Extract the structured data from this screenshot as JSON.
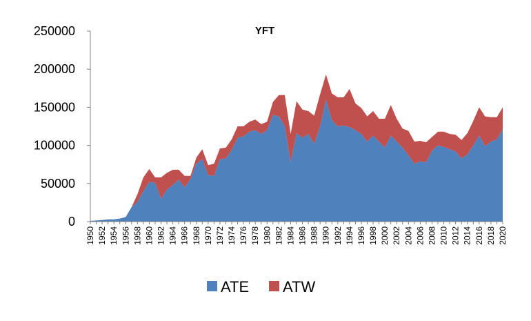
{
  "chart_data": {
    "type": "area",
    "stacked": true,
    "title": "YFT",
    "xlabel": "",
    "ylabel": "",
    "ylim": [
      0,
      250000
    ],
    "yticks": [
      "0",
      "50000",
      "100000",
      "150000",
      "200000",
      "250000"
    ],
    "x": [
      1950,
      1951,
      1952,
      1953,
      1954,
      1955,
      1956,
      1957,
      1958,
      1959,
      1960,
      1961,
      1962,
      1963,
      1964,
      1965,
      1966,
      1967,
      1968,
      1969,
      1970,
      1971,
      1972,
      1973,
      1974,
      1975,
      1976,
      1977,
      1978,
      1979,
      1980,
      1981,
      1982,
      1983,
      1984,
      1985,
      1986,
      1987,
      1988,
      1989,
      1990,
      1991,
      1992,
      1993,
      1994,
      1995,
      1996,
      1997,
      1998,
      1999,
      2000,
      2001,
      2002,
      2003,
      2004,
      2005,
      2006,
      2007,
      2008,
      2009,
      2010,
      2011,
      2012,
      2013,
      2014,
      2015,
      2016,
      2017,
      2018,
      2019,
      2020
    ],
    "xtick_labels": [
      "1950",
      "1952",
      "1954",
      "1956",
      "1958",
      "1960",
      "1962",
      "1964",
      "1966",
      "1968",
      "1970",
      "1972",
      "1974",
      "1976",
      "1978",
      "1980",
      "1982",
      "1984",
      "1986",
      "1988",
      "1990",
      "1992",
      "1994",
      "1996",
      "1998",
      "2000",
      "2002",
      "2004",
      "2006",
      "2008",
      "2010",
      "2012",
      "2014",
      "2016",
      "2018",
      "2020"
    ],
    "series": [
      {
        "name": "ATE",
        "color": "#4f81bd",
        "values": [
          1000,
          1500,
          2000,
          3000,
          3000,
          4000,
          6000,
          19000,
          26000,
          40000,
          52000,
          51000,
          30000,
          42000,
          48000,
          55000,
          45000,
          56000,
          76000,
          82000,
          61000,
          60000,
          82000,
          83000,
          94000,
          110000,
          112000,
          118000,
          120000,
          115000,
          120000,
          140000,
          138000,
          125000,
          78000,
          116000,
          110000,
          115000,
          102000,
          125000,
          160000,
          133000,
          125000,
          126000,
          124000,
          120000,
          115000,
          105000,
          113000,
          105000,
          97000,
          113000,
          105000,
          97000,
          87000,
          76000,
          79000,
          78000,
          93000,
          100000,
          98000,
          95000,
          92000,
          83000,
          88000,
          100000,
          113000,
          99000,
          105000,
          108000,
          121000
        ]
      },
      {
        "name": "ATW",
        "color": "#c0504d",
        "values": [
          0,
          0,
          0,
          0,
          0,
          0,
          0,
          0,
          10000,
          18000,
          17000,
          7000,
          28000,
          22000,
          20000,
          13000,
          15000,
          4000,
          8000,
          13000,
          13000,
          16000,
          14000,
          14000,
          14000,
          15000,
          13000,
          13000,
          14000,
          13000,
          11000,
          17000,
          28000,
          41000,
          37000,
          42000,
          37000,
          30000,
          37000,
          42000,
          33000,
          35000,
          38000,
          37000,
          50000,
          35000,
          34000,
          33000,
          32000,
          30000,
          38000,
          40000,
          30000,
          25000,
          32000,
          29000,
          27000,
          26000,
          18000,
          18000,
          20000,
          20000,
          22000,
          24000,
          28000,
          32000,
          37000,
          39000,
          32000,
          29000,
          29000
        ]
      }
    ],
    "legend": {
      "position": "bottom",
      "entries": [
        "ATE",
        "ATW"
      ]
    },
    "grid": false
  }
}
